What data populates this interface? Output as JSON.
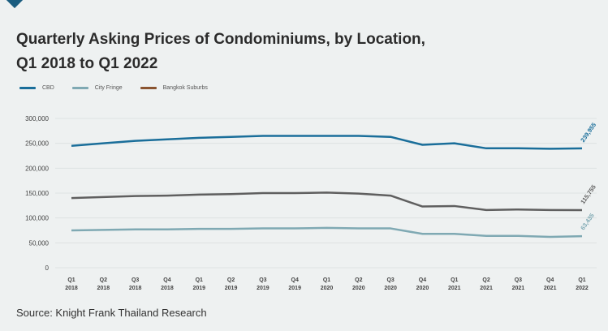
{
  "title_line1": "Quarterly Asking Prices of Condominiums, by Location,",
  "title_line2": "Q1 2018 to Q1 2022",
  "source": "Source: Knight Frank Thailand Research",
  "chart_data": {
    "type": "line",
    "title": "Quarterly Asking Prices of Condominiums, by Location, Q1 2018 to Q1 2022",
    "xlabel": "",
    "ylabel": "",
    "ylim": [
      0,
      300000
    ],
    "yticks": [
      0,
      50000,
      100000,
      150000,
      200000,
      250000,
      300000
    ],
    "ytick_labels": [
      "0",
      "50,000",
      "100,000",
      "150,000",
      "200,000",
      "250,000",
      "300,000"
    ],
    "grid": true,
    "legend_position": "top-left",
    "x": [
      [
        "Q1",
        "2018"
      ],
      [
        "Q2",
        "2018"
      ],
      [
        "Q3",
        "2018"
      ],
      [
        "Q4",
        "2018"
      ],
      [
        "Q1",
        "2019"
      ],
      [
        "Q2",
        "2019"
      ],
      [
        "Q3",
        "2019"
      ],
      [
        "Q4",
        "2019"
      ],
      [
        "Q1",
        "2020"
      ],
      [
        "Q2",
        "2020"
      ],
      [
        "Q3",
        "2020"
      ],
      [
        "Q4",
        "2020"
      ],
      [
        "Q1",
        "2021"
      ],
      [
        "Q2",
        "2021"
      ],
      [
        "Q3",
        "2021"
      ],
      [
        "Q4",
        "2021"
      ],
      [
        "Q1",
        "2022"
      ]
    ],
    "series": [
      {
        "name": "CBD",
        "color": "#1a6e9a",
        "legend_color": "#1a6e9a",
        "end_label": "239,955",
        "values": [
          245000,
          250000,
          255000,
          258000,
          261000,
          263000,
          265000,
          265000,
          265000,
          265000,
          263000,
          247000,
          250000,
          240000,
          240000,
          239000,
          239955
        ]
      },
      {
        "name": "City Fringe",
        "color": "#7fa9b3",
        "legend_color": "#7fa9b3",
        "end_label": "63,435",
        "values": [
          75000,
          76000,
          77000,
          77000,
          78000,
          78000,
          79000,
          79000,
          80000,
          79000,
          79000,
          68000,
          68000,
          64000,
          64000,
          62000,
          63435
        ]
      },
      {
        "name": "Bangkok Suburbs",
        "color": "#5f5f5f",
        "legend_color": "#8a5430",
        "end_label": "115,755",
        "values": [
          140000,
          142000,
          144000,
          145000,
          147000,
          148000,
          150000,
          150000,
          151000,
          149000,
          145000,
          123000,
          124000,
          116000,
          117000,
          116000,
          115755
        ]
      }
    ]
  }
}
